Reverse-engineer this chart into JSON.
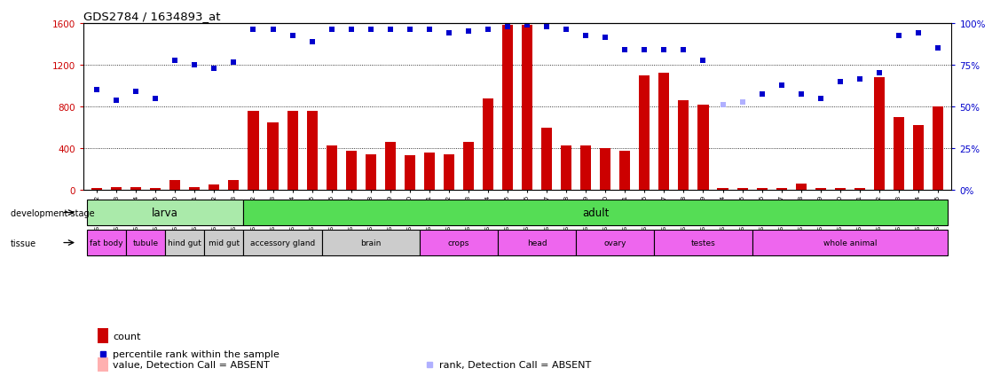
{
  "title": "GDS2784 / 1634893_at",
  "samples": [
    "GSM188092",
    "GSM188093",
    "GSM188094",
    "GSM188095",
    "GSM188100",
    "GSM188101",
    "GSM188102",
    "GSM188103",
    "GSM188072",
    "GSM188073",
    "GSM188074",
    "GSM188075",
    "GSM188076",
    "GSM188077",
    "GSM188078",
    "GSM188079",
    "GSM188080",
    "GSM188081",
    "GSM188082",
    "GSM188083",
    "GSM188084",
    "GSM188085",
    "GSM188086",
    "GSM188087",
    "GSM188088",
    "GSM188089",
    "GSM188090",
    "GSM188091",
    "GSM188096",
    "GSM188097",
    "GSM188098",
    "GSM188099",
    "GSM188104",
    "GSM188105",
    "GSM188106",
    "GSM188107",
    "GSM188108",
    "GSM188109",
    "GSM188110",
    "GSM188111",
    "GSM188112",
    "GSM188113",
    "GSM188114",
    "GSM188115"
  ],
  "counts": [
    20,
    30,
    30,
    20,
    100,
    30,
    50,
    100,
    760,
    650,
    760,
    760,
    430,
    380,
    340,
    460,
    330,
    360,
    340,
    460,
    880,
    1580,
    1580,
    600,
    430,
    430,
    400,
    380,
    1100,
    1120,
    860,
    820,
    20,
    20,
    20,
    20,
    60,
    20,
    20,
    20,
    1080,
    700,
    620,
    800
  ],
  "percentile_ranks": [
    960,
    860,
    940,
    880,
    1240,
    1200,
    1160,
    1220,
    1540,
    1540,
    1480,
    1420,
    1540,
    1540,
    1540,
    1540,
    1540,
    1540,
    1500,
    1520,
    1540,
    1560,
    1580,
    1560,
    1540,
    1480,
    1460,
    1340,
    1340,
    1340,
    1340,
    1240,
    820,
    840,
    920,
    1000,
    920,
    880,
    1040,
    1060,
    1120,
    1480,
    1500,
    1360
  ],
  "absent_rank_indices": [
    32,
    33
  ],
  "absent_count_indices": [],
  "count_color": "#cc0000",
  "rank_color": "#0000cc",
  "absent_count_color": "#ffb0b0",
  "absent_rank_color": "#b0b0ff",
  "ylim_left": [
    0,
    1600
  ],
  "ylim_right": [
    0,
    100
  ],
  "yticks_left": [
    0,
    400,
    800,
    1200,
    1600
  ],
  "yticks_right": [
    0,
    25,
    50,
    75,
    100
  ],
  "dev_stage_groups": [
    {
      "label": "larva",
      "start": 0,
      "end": 7,
      "color": "#aaeaaa"
    },
    {
      "label": "adult",
      "start": 8,
      "end": 43,
      "color": "#55dd55"
    }
  ],
  "tissue_groups": [
    {
      "label": "fat body",
      "start": 0,
      "end": 1,
      "color": "#ee66ee"
    },
    {
      "label": "tubule",
      "start": 2,
      "end": 3,
      "color": "#ee66ee"
    },
    {
      "label": "hind gut",
      "start": 4,
      "end": 5,
      "color": "#cccccc"
    },
    {
      "label": "mid gut",
      "start": 6,
      "end": 7,
      "color": "#cccccc"
    },
    {
      "label": "accessory gland",
      "start": 8,
      "end": 11,
      "color": "#cccccc"
    },
    {
      "label": "brain",
      "start": 12,
      "end": 16,
      "color": "#cccccc"
    },
    {
      "label": "crops",
      "start": 17,
      "end": 20,
      "color": "#ee66ee"
    },
    {
      "label": "head",
      "start": 21,
      "end": 24,
      "color": "#ee66ee"
    },
    {
      "label": "ovary",
      "start": 25,
      "end": 28,
      "color": "#ee66ee"
    },
    {
      "label": "testes",
      "start": 29,
      "end": 33,
      "color": "#ee66ee"
    },
    {
      "label": "whole animal",
      "start": 34,
      "end": 43,
      "color": "#ee66ee"
    }
  ],
  "background_color": "#ffffff"
}
